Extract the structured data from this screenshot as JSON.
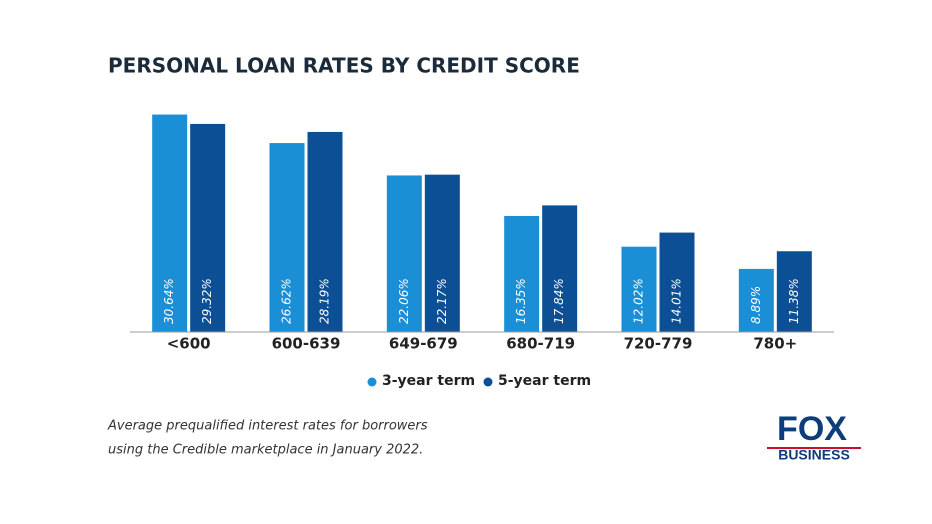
{
  "chart_data": {
    "type": "bar",
    "title": "PERSONAL LOAN RATES BY CREDIT SCORE",
    "categories": [
      "<600",
      "600-639",
      "649-679",
      "680-719",
      "720-779",
      "780+"
    ],
    "series": [
      {
        "name": "3-year term",
        "color": "#1a8fd6",
        "values": [
          30.64,
          26.62,
          22.06,
          16.35,
          12.02,
          8.89
        ],
        "value_labels": [
          "30.64%",
          "26.62%",
          "22.06%",
          "16.35%",
          "12.02%",
          "8.89%"
        ]
      },
      {
        "name": "5-year term",
        "color": "#0d4f94",
        "values": [
          29.32,
          28.19,
          22.17,
          17.84,
          14.01,
          11.38
        ],
        "value_labels": [
          "29.32%",
          "28.19%",
          "22.17%",
          "17.84%",
          "14.01%",
          "11.38%"
        ]
      }
    ],
    "ylim": [
      0,
      31
    ],
    "note": [
      "Average prequalified interest rates for borrowers",
      "using the Credible marketplace in January 2022."
    ]
  },
  "logo": {
    "top": "FOX",
    "bottom": "BUSINESS"
  }
}
